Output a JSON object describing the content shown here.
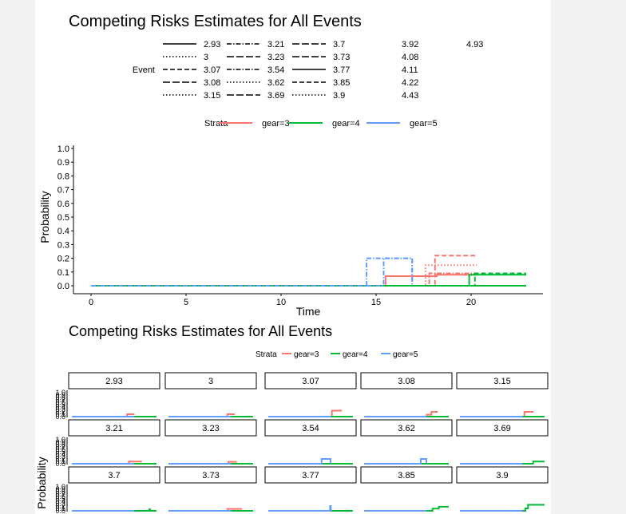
{
  "colors": {
    "gear3": "#F8766D",
    "gear4": "#00BA38",
    "gear5": "#619CFF",
    "background": "#f2f2f2",
    "panel": "#ffffff"
  },
  "chart_data": [
    {
      "type": "line",
      "subtype": "step",
      "title": "Competing Risks Estimates for All Events",
      "xlabel": "Time",
      "ylabel": "Probability",
      "xlim": [
        -0.5,
        23.5
      ],
      "ylim": [
        0,
        1
      ],
      "x_ticks": [
        "0",
        "5",
        "10",
        "15",
        "20"
      ],
      "y_ticks": [
        "0.0",
        "0.1",
        "0.2",
        "0.3",
        "0.4",
        "0.5",
        "0.6",
        "0.7",
        "0.8",
        "0.9",
        "1.0"
      ],
      "grid": false,
      "legend_event": {
        "title": "Event",
        "columns": [
          [
            "2.93",
            "3",
            "3.07",
            "3.08",
            "3.15"
          ],
          [
            "3.21",
            "3.23",
            "3.54",
            "3.62",
            "3.69"
          ],
          [
            "3.7",
            "3.73",
            "3.77",
            "3.85",
            "3.9"
          ],
          [
            "3.92",
            "4.08",
            "4.11",
            "4.22",
            "4.43"
          ],
          [
            "4.93"
          ]
        ]
      },
      "legend_strata": {
        "title": "Strata",
        "items": [
          "gear=3",
          "gear=4",
          "gear=5"
        ]
      },
      "series": [
        {
          "strata": "gear=3",
          "dash": "solid",
          "points": [
            [
              0,
              0
            ],
            [
              15.5,
              0
            ],
            [
              15.5,
              0.07
            ],
            [
              18.2,
              0.07
            ],
            [
              18.2,
              0.08
            ],
            [
              20.3,
              0.08
            ]
          ]
        },
        {
          "strata": "gear=3",
          "dash": "dashed",
          "points": [
            [
              0,
              0
            ],
            [
              18.1,
              0
            ],
            [
              18.1,
              0.22
            ],
            [
              20.3,
              0.22
            ]
          ]
        },
        {
          "strata": "gear=3",
          "dash": "dotted",
          "points": [
            [
              0,
              0
            ],
            [
              17.6,
              0
            ],
            [
              17.6,
              0.15
            ],
            [
              20.3,
              0.15
            ]
          ]
        },
        {
          "strata": "gear=3",
          "dash": "dotdash",
          "points": [
            [
              0,
              0
            ],
            [
              17.8,
              0
            ],
            [
              17.8,
              0.09
            ],
            [
              20.3,
              0.09
            ]
          ]
        },
        {
          "strata": "gear=4",
          "dash": "solid",
          "points": [
            [
              0,
              0
            ],
            [
              19.9,
              0
            ],
            [
              19.9,
              0.08
            ],
            [
              22.9,
              0.08
            ]
          ]
        },
        {
          "strata": "gear=4",
          "dash": "dashed",
          "points": [
            [
              0,
              0
            ],
            [
              20.2,
              0
            ],
            [
              20.2,
              0.09
            ],
            [
              22.9,
              0.09
            ]
          ]
        },
        {
          "strata": "gear=4",
          "dash": "solid",
          "points": [
            [
              0,
              0
            ],
            [
              22.9,
              0
            ]
          ]
        },
        {
          "strata": "gear=5",
          "dash": "dotdash",
          "points": [
            [
              0,
              0
            ],
            [
              14.5,
              0
            ],
            [
              14.5,
              0.2
            ],
            [
              16.9,
              0.2
            ],
            [
              16.9,
              0
            ]
          ]
        },
        {
          "strata": "gear=5",
          "dash": "dotdash",
          "points": [
            [
              0,
              0
            ],
            [
              15.4,
              0
            ],
            [
              15.4,
              0.2
            ],
            [
              16.9,
              0.2
            ],
            [
              16.9,
              0
            ]
          ]
        }
      ]
    },
    {
      "type": "line",
      "subtype": "faceted-step",
      "title": "Competing Risks Estimates for All Events",
      "ylabel": "Probability",
      "xlim": [
        0,
        23
      ],
      "ylim": [
        0,
        1
      ],
      "y_ticks": [
        "0.0",
        "0.1",
        "0.2",
        "0.3",
        "0.4",
        "0.5",
        "0.6",
        "0.7",
        "0.8",
        "0.9",
        "1.0"
      ],
      "legend_strata": {
        "title": "Strata",
        "items": [
          "gear=3",
          "gear=4",
          "gear=5"
        ]
      },
      "facets": [
        {
          "label": "2.93",
          "series": {
            "gear=3": [
              [
                0,
                0
              ],
              [
                15,
                0
              ],
              [
                15,
                0.1
              ],
              [
                17,
                0.1
              ]
            ],
            "gear=4": [
              [
                0,
                0
              ],
              [
                23,
                0
              ]
            ],
            "gear=5": [
              [
                0,
                0
              ],
              [
                17,
                0
              ]
            ]
          }
        },
        {
          "label": "3",
          "series": {
            "gear=3": [
              [
                0,
                0
              ],
              [
                16,
                0
              ],
              [
                16,
                0.1
              ],
              [
                18,
                0.1
              ]
            ],
            "gear=4": [
              [
                0,
                0
              ],
              [
                23,
                0
              ]
            ],
            "gear=5": [
              [
                0,
                0
              ],
              [
                17,
                0
              ]
            ]
          }
        },
        {
          "label": "3.07",
          "series": {
            "gear=3": [
              [
                0,
                0
              ],
              [
                17.3,
                0
              ],
              [
                17.3,
                0.25
              ],
              [
                20,
                0.25
              ]
            ],
            "gear=4": [
              [
                0,
                0
              ],
              [
                23,
                0
              ]
            ],
            "gear=5": [
              [
                0,
                0
              ],
              [
                17,
                0
              ]
            ]
          }
        },
        {
          "label": "3.08",
          "series": {
            "gear=3": [
              [
                0,
                0
              ],
              [
                17,
                0
              ],
              [
                17,
                0.08
              ],
              [
                18.3,
                0.08
              ],
              [
                18.3,
                0.2
              ],
              [
                20,
                0.2
              ]
            ],
            "gear=4": [
              [
                0,
                0
              ],
              [
                23,
                0
              ]
            ],
            "gear=5": [
              [
                0,
                0
              ],
              [
                17,
                0
              ]
            ]
          }
        },
        {
          "label": "3.15",
          "series": {
            "gear=3": [
              [
                0,
                0
              ],
              [
                17.5,
                0
              ],
              [
                17.5,
                0.2
              ],
              [
                20,
                0.2
              ]
            ],
            "gear=4": [
              [
                0,
                0
              ],
              [
                23,
                0
              ]
            ],
            "gear=5": [
              [
                0,
                0
              ],
              [
                17,
                0
              ]
            ]
          }
        },
        {
          "label": "3.21",
          "series": {
            "gear=3": [
              [
                0,
                0
              ],
              [
                15.5,
                0
              ],
              [
                15.5,
                0.09
              ],
              [
                19,
                0.09
              ]
            ],
            "gear=4": [
              [
                0,
                0
              ],
              [
                23,
                0
              ]
            ],
            "gear=5": [
              [
                0,
                0
              ],
              [
                17,
                0
              ]
            ]
          }
        },
        {
          "label": "3.23",
          "series": {
            "gear=3": [
              [
                0,
                0
              ],
              [
                16.3,
                0
              ],
              [
                16.3,
                0.08
              ],
              [
                18.6,
                0.08
              ]
            ],
            "gear=4": [
              [
                0,
                0
              ],
              [
                23,
                0
              ]
            ],
            "gear=5": [
              [
                0,
                0
              ],
              [
                17,
                0
              ]
            ]
          }
        },
        {
          "label": "3.54",
          "series": {
            "gear=3": [
              [
                0,
                0
              ],
              [
                17,
                0
              ]
            ],
            "gear=4": [
              [
                0,
                0
              ],
              [
                23,
                0
              ]
            ],
            "gear=5": [
              [
                0,
                0
              ],
              [
                14.5,
                0
              ],
              [
                14.5,
                0.2
              ],
              [
                16.9,
                0.2
              ],
              [
                16.9,
                0
              ]
            ]
          }
        },
        {
          "label": "3.62",
          "series": {
            "gear=3": [
              [
                0,
                0
              ],
              [
                17,
                0
              ]
            ],
            "gear=4": [
              [
                0,
                0
              ],
              [
                23,
                0
              ]
            ],
            "gear=5": [
              [
                0,
                0
              ],
              [
                15.4,
                0
              ],
              [
                15.4,
                0.2
              ],
              [
                16.9,
                0.2
              ],
              [
                16.9,
                0
              ]
            ]
          }
        },
        {
          "label": "3.69",
          "series": {
            "gear=3": [
              [
                0,
                0
              ],
              [
                17,
                0
              ]
            ],
            "gear=4": [
              [
                0,
                0
              ],
              [
                19.9,
                0
              ],
              [
                19.9,
                0.09
              ],
              [
                23,
                0.09
              ]
            ],
            "gear=5": [
              [
                0,
                0
              ],
              [
                17,
                0
              ]
            ]
          }
        },
        {
          "label": "3.7",
          "series": {
            "gear=3": [
              [
                0,
                0
              ],
              [
                17,
                0
              ]
            ],
            "gear=4": [
              [
                0,
                0
              ],
              [
                21,
                0
              ],
              [
                21,
                0.06
              ],
              [
                21.3,
                0.06
              ],
              [
                21.3,
                0
              ],
              [
                23,
                0
              ]
            ],
            "gear=5": [
              [
                0,
                0
              ],
              [
                17,
                0
              ]
            ]
          }
        },
        {
          "label": "3.73",
          "series": {
            "gear=3": [
              [
                0,
                0
              ],
              [
                16,
                0
              ],
              [
                16,
                0.08
              ],
              [
                20,
                0.08
              ]
            ],
            "gear=4": [
              [
                0,
                0
              ],
              [
                23,
                0
              ]
            ],
            "gear=5": [
              [
                0,
                0
              ],
              [
                17,
                0
              ]
            ]
          }
        },
        {
          "label": "3.77",
          "series": {
            "gear=3": [
              [
                0,
                0
              ],
              [
                17,
                0
              ]
            ],
            "gear=4": [
              [
                0,
                0
              ],
              [
                23,
                0
              ]
            ],
            "gear=5": [
              [
                0,
                0
              ],
              [
                16.8,
                0
              ],
              [
                16.8,
                0.2
              ],
              [
                17,
                0.2
              ],
              [
                17,
                0
              ]
            ]
          }
        },
        {
          "label": "3.85",
          "series": {
            "gear=3": [
              [
                0,
                0
              ],
              [
                17,
                0
              ]
            ],
            "gear=4": [
              [
                0,
                0
              ],
              [
                18.6,
                0
              ],
              [
                18.6,
                0.09
              ],
              [
                20.3,
                0.09
              ],
              [
                20.3,
                0.17
              ],
              [
                23,
                0.17
              ]
            ],
            "gear=5": [
              [
                0,
                0
              ],
              [
                17,
                0
              ]
            ]
          }
        },
        {
          "label": "3.9",
          "series": {
            "gear=3": [
              [
                0,
                0
              ],
              [
                17,
                0
              ]
            ],
            "gear=4": [
              [
                0,
                0
              ],
              [
                17.8,
                0
              ],
              [
                17.8,
                0.1
              ],
              [
                18.5,
                0.1
              ],
              [
                18.5,
                0.25
              ],
              [
                23,
                0.25
              ]
            ],
            "gear=5": [
              [
                0,
                0
              ],
              [
                17,
                0
              ]
            ]
          }
        }
      ]
    }
  ]
}
